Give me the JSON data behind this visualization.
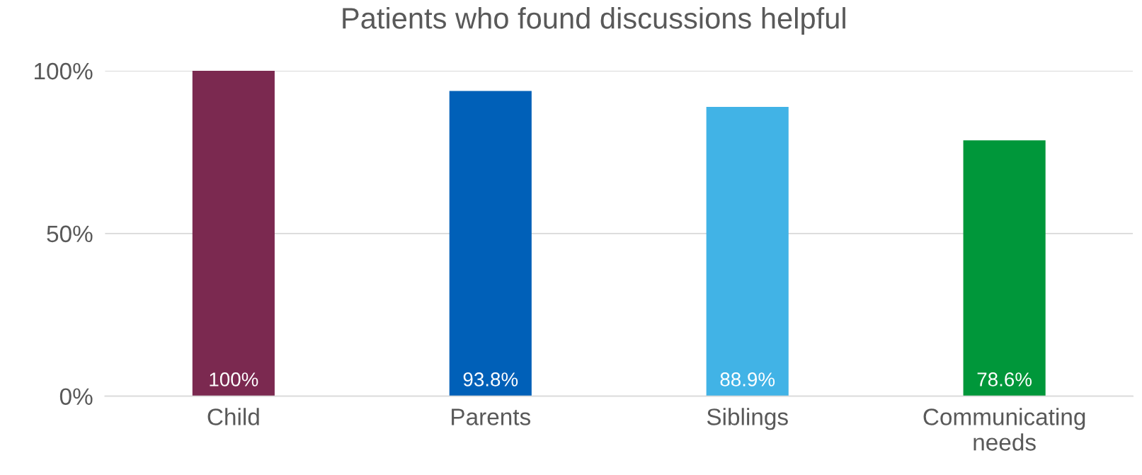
{
  "chart_data": {
    "type": "bar",
    "title": "Patients who found discussions helpful",
    "categories": [
      "Child",
      "Parents",
      "Siblings",
      "Communicating\nneeds"
    ],
    "values": [
      100,
      93.8,
      88.9,
      78.6
    ],
    "colors": [
      "#7b2950",
      "#0060b8",
      "#41b3e6",
      "#00973a"
    ],
    "value_labels": [
      "100%",
      "93.8%",
      "88.9%",
      "78.6%"
    ],
    "ylim": [
      0,
      100
    ],
    "yticks": [
      {
        "value": 0,
        "label": "0%"
      },
      {
        "value": 50,
        "label": "50%"
      },
      {
        "value": 100,
        "label": "100%"
      }
    ],
    "grid": "y"
  }
}
